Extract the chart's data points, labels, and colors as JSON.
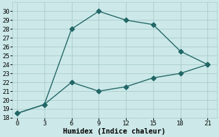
{
  "xlabel": "Humidex (Indice chaleur)",
  "bg_color": "#cce8e8",
  "grid_color": "#aacccc",
  "line_color": "#226666",
  "line1_x": [
    0,
    3,
    6,
    9,
    12,
    15,
    18,
    21
  ],
  "line1_y": [
    18.5,
    19.5,
    28.0,
    30.0,
    29.0,
    28.5,
    25.5,
    24.0
  ],
  "line2_x": [
    0,
    3,
    6,
    9,
    12,
    15,
    18,
    21
  ],
  "line2_y": [
    18.5,
    19.5,
    22.0,
    21.0,
    21.5,
    22.5,
    23.0,
    24.0
  ],
  "xlim": [
    -0.5,
    22
  ],
  "ylim": [
    18,
    31
  ],
  "xticks": [
    0,
    3,
    6,
    9,
    12,
    15,
    18,
    21
  ],
  "yticks": [
    18,
    19,
    20,
    21,
    22,
    23,
    24,
    25,
    26,
    27,
    28,
    29,
    30
  ],
  "tick_fontsize": 6.5,
  "label_fontsize": 7.5
}
